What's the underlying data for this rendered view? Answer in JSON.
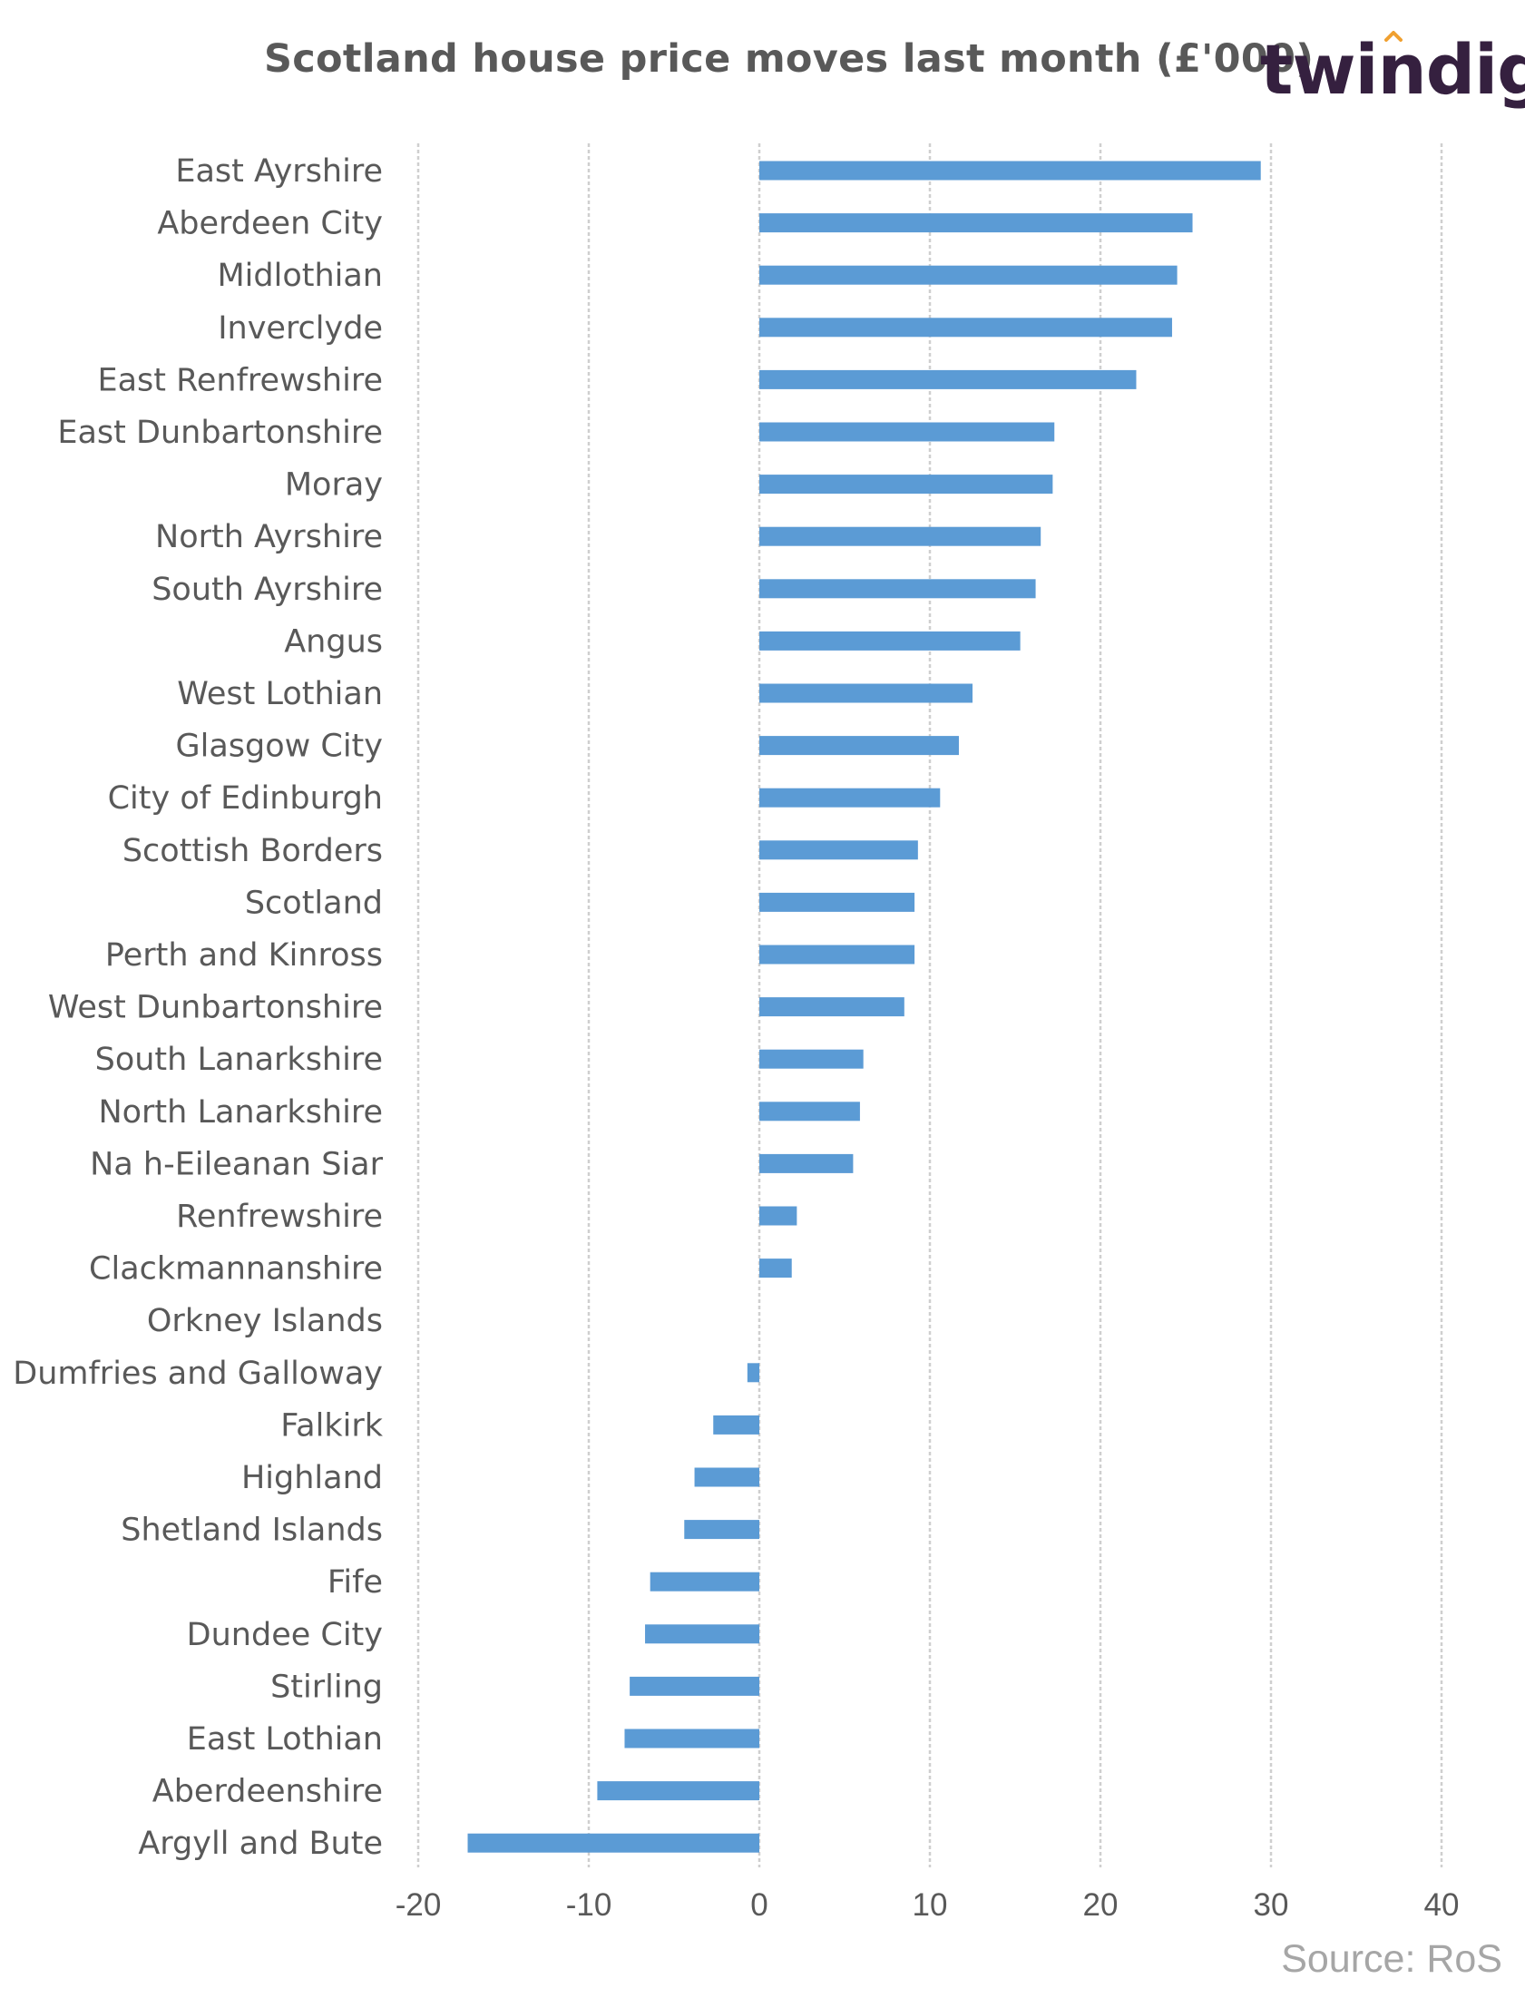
{
  "title": "Scotland house price moves last month (£'000)",
  "logo": {
    "text": "twindig",
    "text_color": "#35203f",
    "accent_color": "#f0a030"
  },
  "source": "Source: RoS",
  "chart_data": {
    "type": "bar",
    "orientation": "horizontal",
    "title": "Scotland house price moves last month (£'000)",
    "xlim": [
      -20,
      40
    ],
    "x_ticks": [
      -20,
      -10,
      0,
      10,
      20,
      30,
      40
    ],
    "grid": true,
    "bar_color": "#5b9bd5",
    "categories": [
      "East Ayrshire",
      "Aberdeen City",
      "Midlothian",
      "Inverclyde",
      "East Renfrewshire",
      "East Dunbartonshire",
      "Moray",
      "North Ayrshire",
      "South Ayrshire",
      "Angus",
      "West Lothian",
      "Glasgow City",
      "City of Edinburgh",
      "Scottish Borders",
      "Scotland",
      "Perth and Kinross",
      "West Dunbartonshire",
      "South Lanarkshire",
      "North Lanarkshire",
      "Na h-Eileanan Siar",
      "Renfrewshire",
      "Clackmannanshire",
      "Orkney Islands",
      "Dumfries and Galloway",
      "Falkirk",
      "Highland",
      "Shetland Islands",
      "Fife",
      "Dundee City",
      "Stirling",
      "East Lothian",
      "Aberdeenshire",
      "Argyll and Bute"
    ],
    "values": [
      29.4,
      25.4,
      24.5,
      24.2,
      22.1,
      17.3,
      17.2,
      16.5,
      16.2,
      15.3,
      12.5,
      11.7,
      10.6,
      9.3,
      9.1,
      9.1,
      8.5,
      6.1,
      5.9,
      5.5,
      2.2,
      1.9,
      0.0,
      -0.7,
      -2.7,
      -3.8,
      -4.4,
      -6.4,
      -6.7,
      -7.6,
      -7.9,
      -9.5,
      -17.1
    ]
  }
}
